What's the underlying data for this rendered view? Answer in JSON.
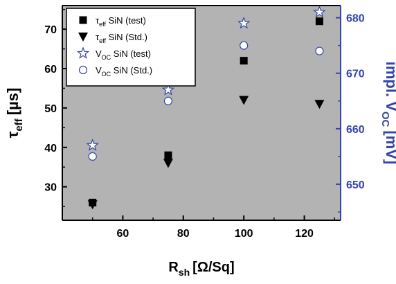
{
  "colors": {
    "plot_bg": "#b3b3b3",
    "black": "#000000",
    "right_axis": "#3344aa"
  },
  "chart_data": {
    "type": "scatter",
    "x": [
      50,
      75,
      100,
      125
    ],
    "xlabel": {
      "main": "R",
      "sub": "sh",
      "unit": "[Ω/Sq]"
    },
    "xlim": [
      40,
      132
    ],
    "xticks": [
      60,
      80,
      100,
      120
    ],
    "ylabel_left": {
      "main": "τ",
      "sub": "eff",
      "unit": "[µs]"
    },
    "ylim_left": [
      21.5,
      76
    ],
    "yticks_left": [
      30,
      40,
      50,
      60,
      70
    ],
    "ylabel_right": {
      "pre": "impl. V",
      "sub": "OC",
      "unit": "[mV]"
    },
    "ylim_right": [
      643.5,
      682.2
    ],
    "yticks_right": [
      650,
      660,
      670,
      680
    ],
    "legend_position": "top-left",
    "series": [
      {
        "legend_main": "τ",
        "legend_sub": "eff",
        "legend_rest": " SiN (test)",
        "axis": "left",
        "marker": "square",
        "values": [
          26,
          38,
          62,
          72
        ]
      },
      {
        "legend_main": "τ",
        "legend_sub": "eff",
        "legend_rest": " SiN (Std.)",
        "axis": "left",
        "marker": "triangle-down",
        "values": [
          25.5,
          36,
          52,
          51
        ]
      },
      {
        "legend_main": "V",
        "legend_sub": "OC",
        "legend_rest": " SiN (test)",
        "axis": "right",
        "marker": "star",
        "values": [
          657,
          667,
          679,
          681
        ]
      },
      {
        "legend_main": "V",
        "legend_sub": "OC",
        "legend_rest": " SiN (Std.)",
        "axis": "right",
        "marker": "circle",
        "values": [
          655,
          665,
          675,
          674
        ]
      }
    ]
  }
}
